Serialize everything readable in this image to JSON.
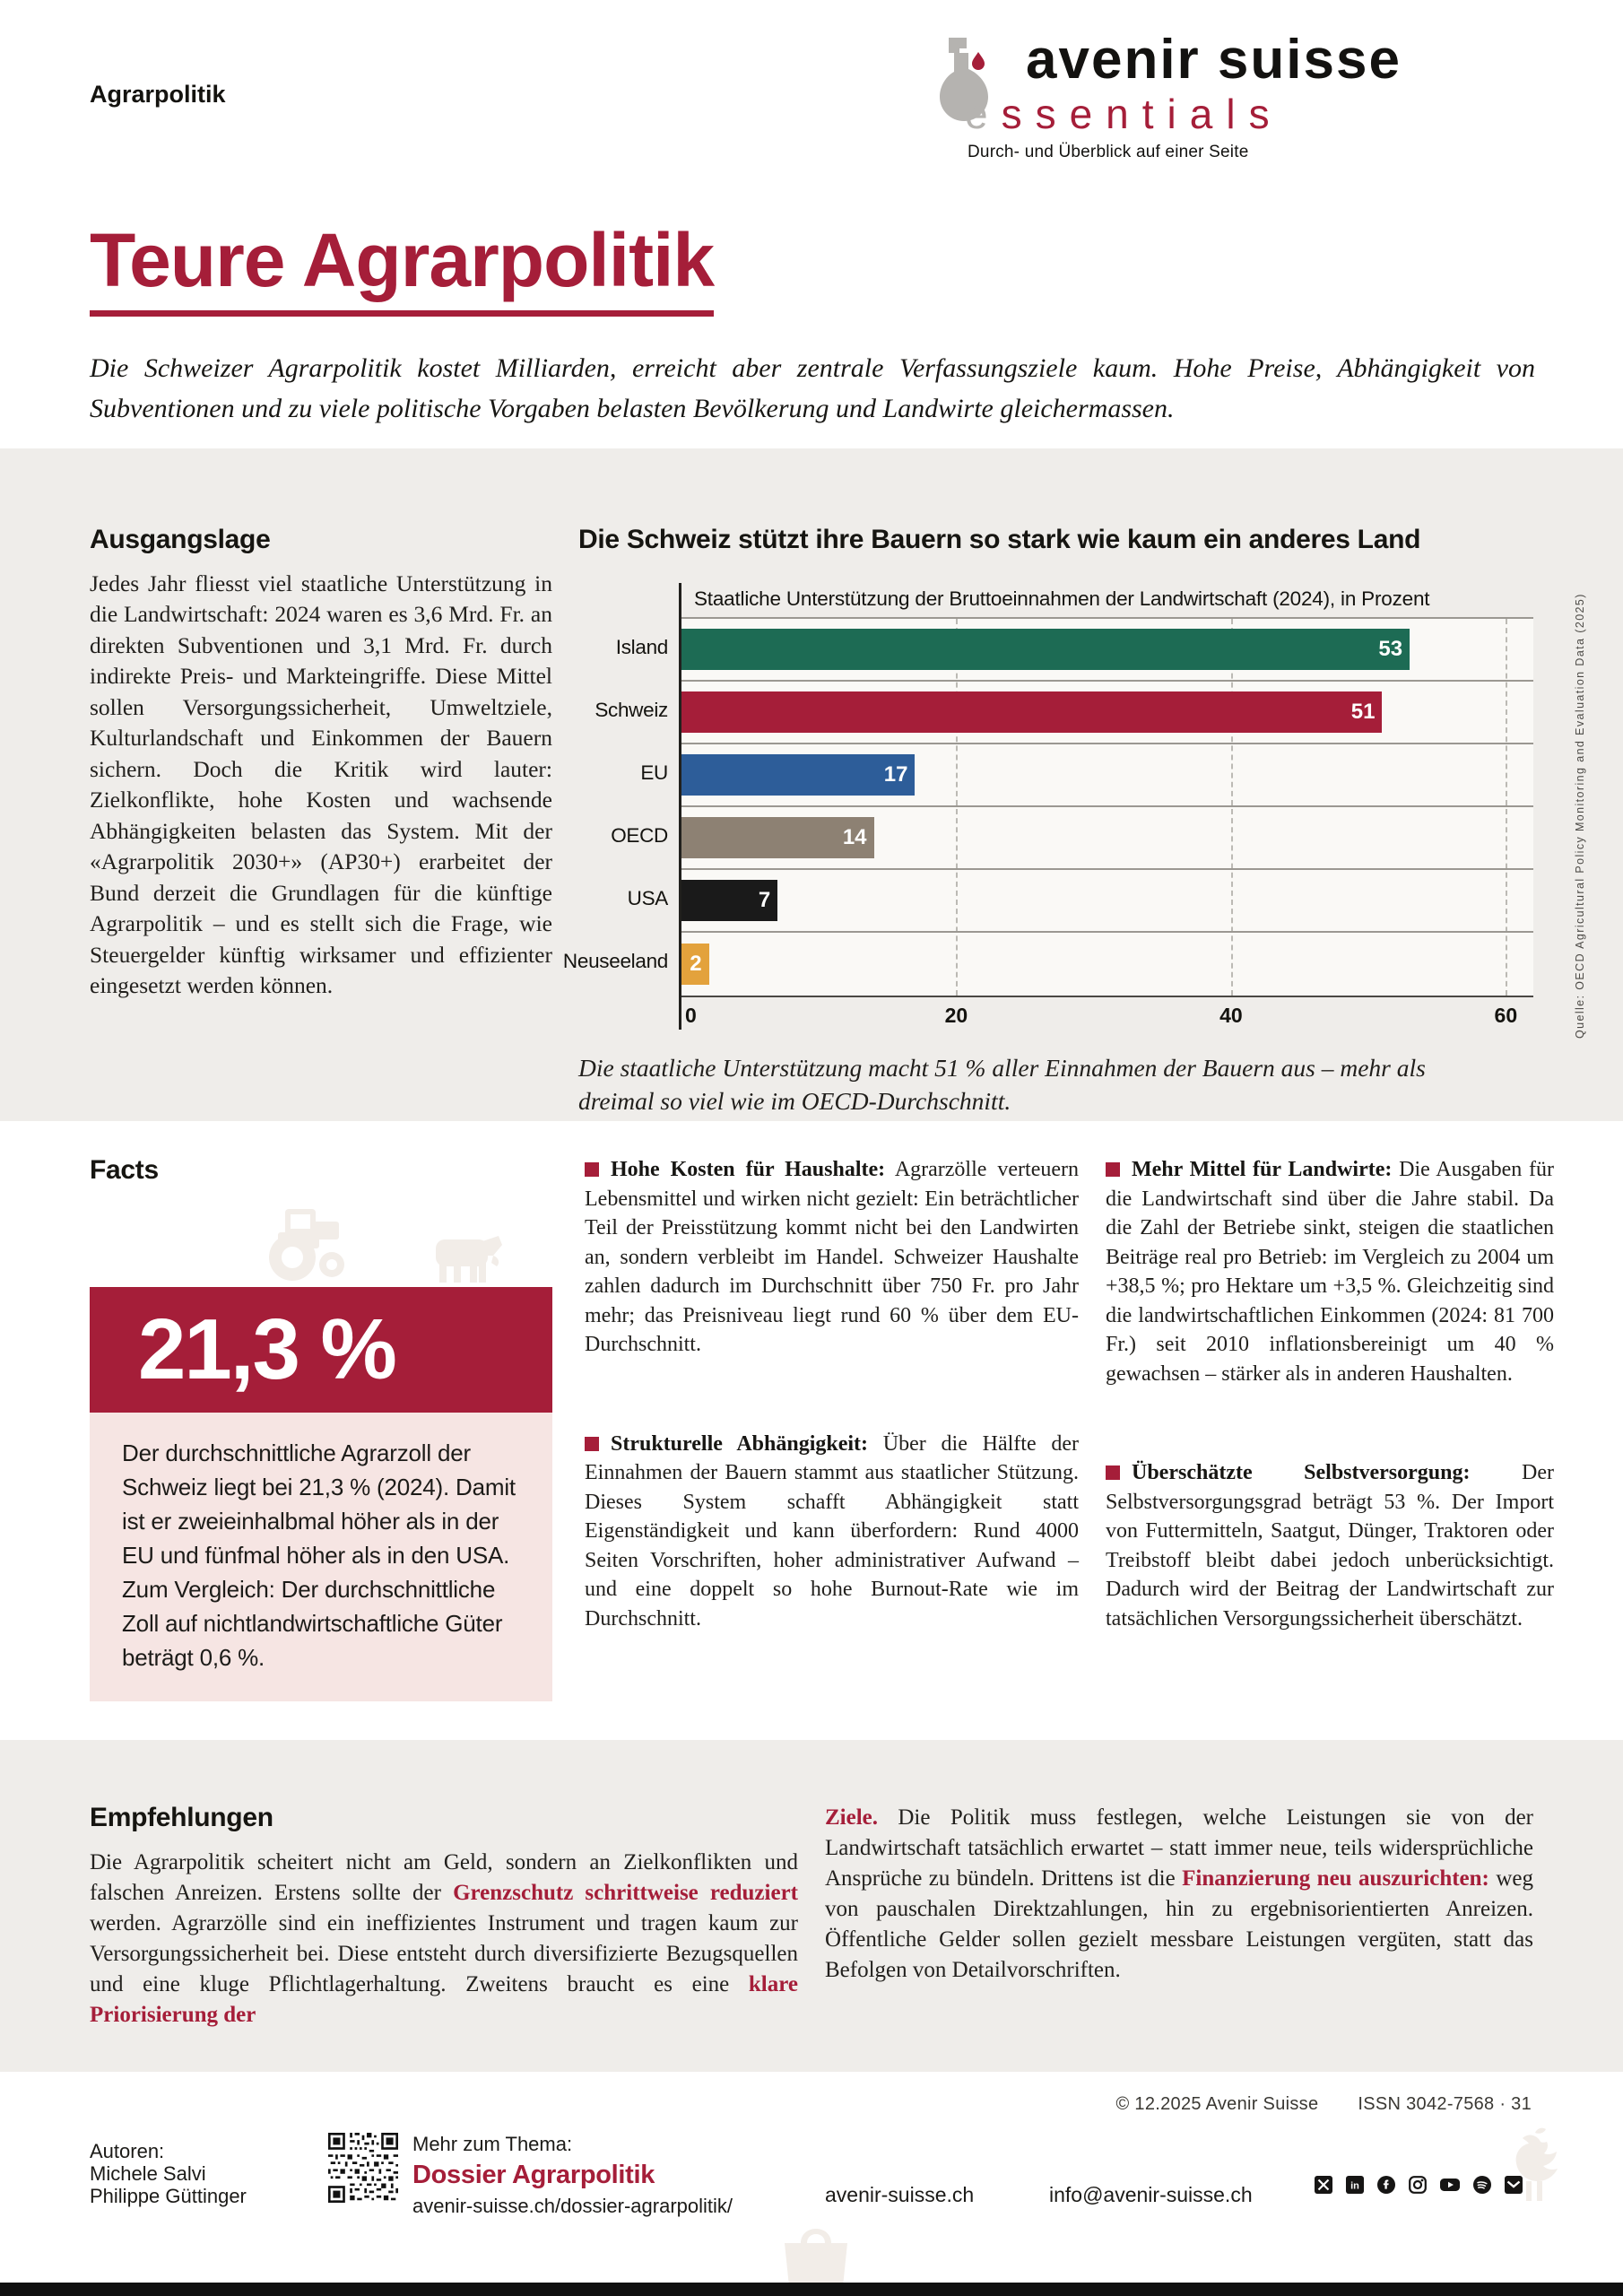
{
  "header": {
    "kicker": "Agrarpolitik",
    "logo": {
      "brand": "avenir suisse",
      "product_initial": "e",
      "product_rest": "ssentials",
      "tagline": "Durch- und Überblick auf einer Seite"
    }
  },
  "title": "Teure Agrarpolitik",
  "lead": "Die Schweizer Agrarpolitik kostet Milliarden, erreicht aber zentrale Verfassungsziele kaum. Hohe Preise, Abhängigkeit von Subventionen und zu viele politische Vorgaben belasten Bevölkerung und Landwirte gleichermassen.",
  "ausgangslage": {
    "heading": "Ausgangslage",
    "body": "Jedes Jahr fliesst viel staatliche Unterstützung in die Landwirtschaft: 2024 waren es 3,6 Mrd. Fr. an direkten Subventionen und 3,1 Mrd. Fr. durch indirekte Preis- und Markteingriffe. Diese Mittel sollen Versorgungssicherheit, Umweltziele, Kulturlandschaft und Einkommen der Bauern sichern. Doch die Kritik wird lauter: Zielkonflikte, hohe Kosten und wachsende Abhängigkeiten belasten das System. Mit der «Agrarpolitik 2030+» (AP30+) erarbeitet der Bund derzeit die Grundlagen für die künftige Agrarpolitik – und es stellt sich die Frage, wie Steuergelder künftig wirksamer und effizienter eingesetzt werden können."
  },
  "chart_data": {
    "type": "bar",
    "orientation": "horizontal",
    "title": "Die Schweiz stützt ihre Bauern so stark wie kaum ein anderes Land",
    "subtitle": "Staatliche Unterstützung der Bruttoeinnahmen der Landwirtschaft (2024), in Prozent",
    "categories": [
      "Island",
      "Schweiz",
      "EU",
      "OECD",
      "USA",
      "Neuseeland"
    ],
    "values": [
      53,
      51,
      17,
      14,
      7,
      2
    ],
    "colors": [
      "#1d6b54",
      "#a51e39",
      "#2d5d99",
      "#8d8173",
      "#1a1a1a",
      "#e3a23c"
    ],
    "xlim": [
      0,
      62
    ],
    "ticks": [
      0,
      20,
      40,
      60
    ],
    "grid": "dashed-vertical",
    "value_labels": "inside-end-white",
    "source": "Quelle: OECD Agricultural Policy Monitoring and Evaluation Data (2025)",
    "caption": "Die staatliche Unterstützung macht 51 % aller Einnahmen der Bauern aus – mehr als dreimal so viel wie im OECD-Durchschnitt."
  },
  "facts": {
    "heading": "Facts",
    "stat": "21,3 %",
    "stat_text": "Der durchschnittliche Agrarzoll der Schweiz liegt bei 21,3 % (2024). Damit ist er zweieinhalbmal höher als in der EU und fünfmal höher als in den USA. Zum Vergleich: Der durchschnittliche Zoll auf nichtlandwirtschaftliche Güter beträgt 0,6 %.",
    "items": [
      {
        "lead": "Hohe Kosten für Haushalte:",
        "text": "Agrarzölle verteuern Lebensmittel und wirken nicht gezielt: Ein beträchtlicher Teil der Preisstützung kommt nicht bei den Landwirten an, sondern verbleibt im Handel. Schweizer Haushalte zahlen dadurch im Durchschnitt über 750 Fr. pro Jahr mehr; das Preisniveau liegt rund 60 % über dem EU-Durchschnitt."
      },
      {
        "lead": "Strukturelle Abhängigkeit:",
        "text": "Über die Hälfte der Einnahmen der Bauern stammt aus staatlicher Stützung. Dieses System schafft Abhängigkeit statt Eigenständigkeit und kann überfordern: Rund 4000 Seiten Vorschriften, hoher administrativer Aufwand – und eine doppelt so hohe Burnout-Rate wie im Durchschnitt."
      },
      {
        "lead": "Mehr Mittel für Landwirte:",
        "text": "Die Ausgaben für die Landwirtschaft sind über die Jahre stabil. Da die Zahl der Betriebe sinkt, steigen die staatlichen Beiträge real pro Betrieb: im Vergleich zu 2004 um +38,5 %; pro Hektare um +3,5 %. Gleichzeitig sind die landwirtschaftlichen Einkommen (2024: 81 700 Fr.) seit 2010 inflationsbereinigt um 40 % gewachsen – stärker als in anderen Haushalten."
      },
      {
        "lead": "Überschätzte Selbstversorgung:",
        "text": "Der Selbstversorgungsgrad beträgt 53 %. Der Import von Futtermitteln, Saatgut, Dünger, Traktoren oder Treibstoff bleibt dabei jedoch unberücksichtigt. Dadurch wird der Beitrag der Landwirtschaft zur tatsächlichen Versorgungssicherheit überschätzt."
      }
    ]
  },
  "empfehlungen": {
    "heading": "Empfehlungen",
    "left_segments": [
      {
        "style": "normal",
        "text": "Die Agrarpolitik scheitert nicht am Geld, sondern an Zielkonflikten und falschen Anreizen. Erstens sollte der "
      },
      {
        "style": "accent",
        "text": "Grenzschutz schrittweise reduziert"
      },
      {
        "style": "normal",
        "text": " werden. Agrarzölle sind ein ineffizientes Instrument und tragen kaum zur Versorgungssicherheit bei. Diese entsteht durch diversifizierte Bezugsquellen und eine kluge Pflichtlagerhaltung. Zweitens braucht es eine "
      },
      {
        "style": "accent",
        "text": "klare Priorisierung der"
      }
    ],
    "right_segments": [
      {
        "style": "accent",
        "text": "Ziele."
      },
      {
        "style": "normal",
        "text": " Die Politik muss festlegen, welche Leistungen sie von der Landwirtschaft tatsächlich erwartet – statt immer neue, teils widersprüchliche Ansprüche zu bündeln. Drittens ist die "
      },
      {
        "style": "accent",
        "text": "Finanzierung neu auszurichten:"
      },
      {
        "style": "normal",
        "text": " weg von pauschalen Direktzahlungen, hin zu ergebnisorientierten Anreizen. Öffentliche Gelder sollen gezielt messbare Leistungen vergüten, statt das Befolgen von Detailvorschriften."
      }
    ]
  },
  "footer": {
    "copyright": "© 12.2025 Avenir Suisse",
    "issn": "ISSN 3042-7568 · 31",
    "authors_label": "Autoren:",
    "authors": [
      "Michele Salvi",
      "Philippe Güttinger"
    ],
    "more_label": "Mehr zum Thema:",
    "dossier_title": "Dossier Agrarpolitik",
    "dossier_url": "avenir-suisse.ch/dossier-agrarpolitik/",
    "website": "avenir-suisse.ch",
    "email": "info@avenir-suisse.ch",
    "social_icons": [
      "x",
      "linkedin",
      "facebook",
      "instagram",
      "youtube",
      "spotify",
      "email"
    ]
  },
  "colors": {
    "accent": "#a51e39",
    "band_gray": "#efedea",
    "pink_box": "#f6e5e3",
    "bar_island": "#1d6b54",
    "bar_schweiz": "#a51e39",
    "bar_eu": "#2d5d99",
    "bar_oecd": "#8d8173",
    "bar_usa": "#1a1a1a",
    "bar_neuseeland": "#e3a23c"
  }
}
